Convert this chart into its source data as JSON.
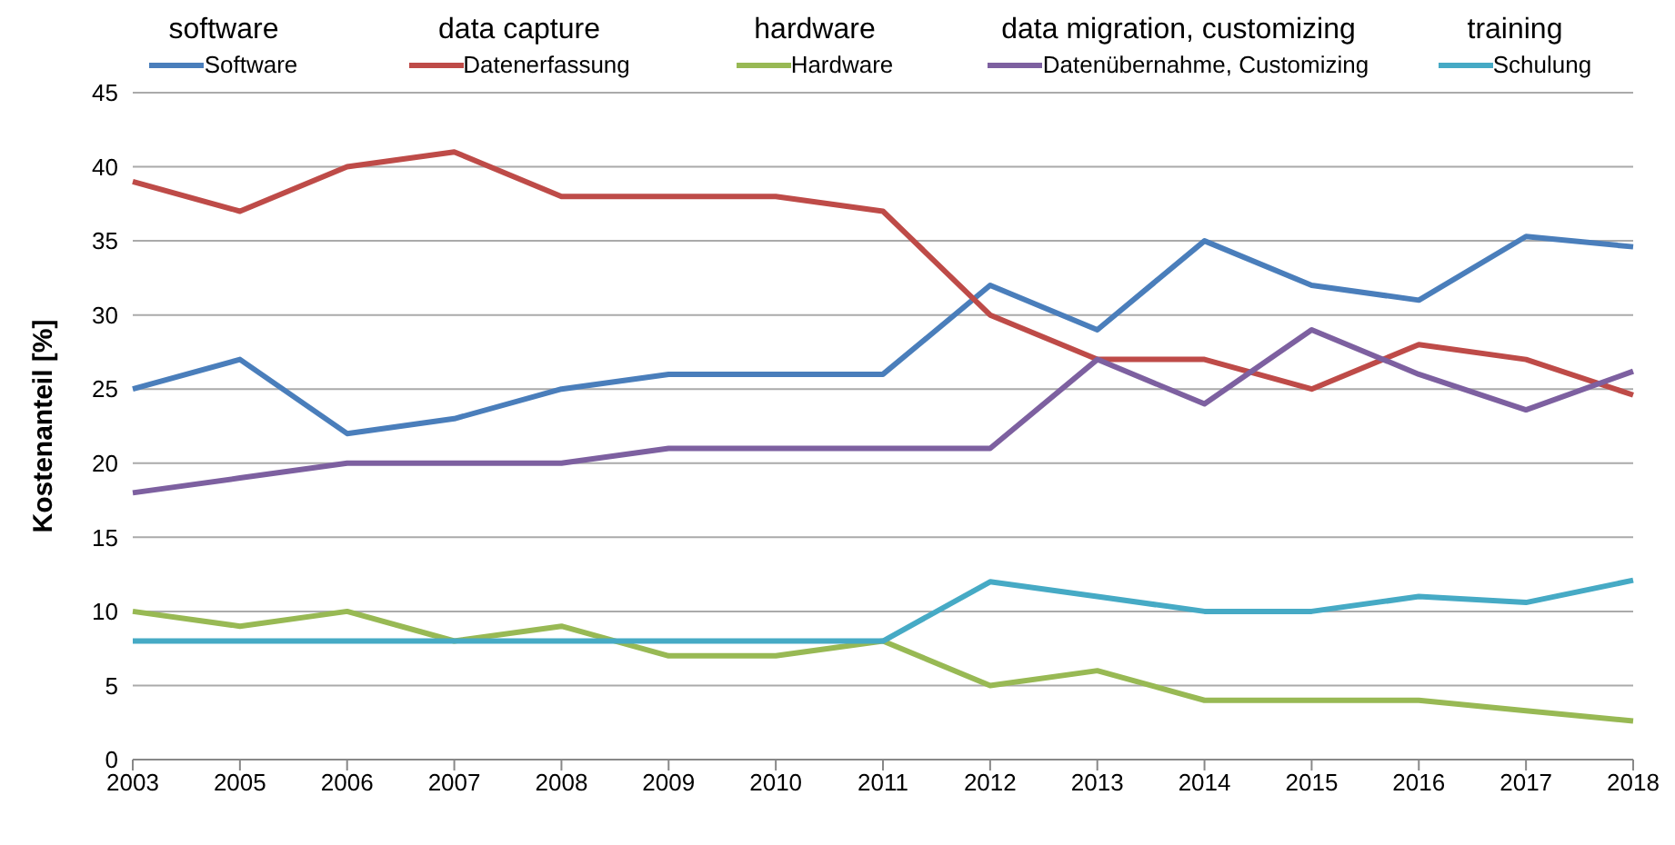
{
  "chart_data": {
    "type": "line",
    "ylabel": "Kostenanteil [%]",
    "annotations": [
      "software",
      "data capture",
      "hardware",
      "data migration, customizing",
      "training"
    ],
    "categories": [
      "2003",
      "2005",
      "2006",
      "2007",
      "2008",
      "2009",
      "2010",
      "2011",
      "2012",
      "2013",
      "2014",
      "2015",
      "2016",
      "2017",
      "2018"
    ],
    "series": [
      {
        "name": "Software",
        "color": "#4a7ebb",
        "values": [
          25,
          27,
          22,
          23,
          25,
          26,
          26,
          26,
          32,
          29,
          35,
          32,
          31,
          35.3,
          34.6
        ]
      },
      {
        "name": "Datenerfassung",
        "color": "#be4b48",
        "values": [
          39,
          37,
          40,
          41,
          38,
          38,
          38,
          37,
          30,
          27,
          27,
          25,
          28,
          27,
          24.6
        ]
      },
      {
        "name": "Hardware",
        "color": "#98b954",
        "values": [
          10,
          9,
          10,
          8,
          9,
          7,
          7,
          8,
          5,
          6,
          4,
          4,
          4,
          3.3,
          2.6
        ]
      },
      {
        "name": "Datenübernahme, Customizing",
        "color": "#7d60a0",
        "values": [
          18,
          19,
          20,
          20,
          20,
          21,
          21,
          21,
          21,
          27,
          24,
          29,
          26,
          23.6,
          26.2
        ]
      },
      {
        "name": "Schulung",
        "color": "#46aac5",
        "values": [
          8,
          8,
          8,
          8,
          8,
          8,
          8,
          8,
          12,
          11,
          10,
          10,
          11,
          10.6,
          12.1
        ]
      }
    ],
    "ylim": [
      0,
      45
    ],
    "yticks": [
      0,
      5,
      10,
      15,
      20,
      25,
      30,
      35,
      40,
      45
    ],
    "grid": "y",
    "legend": "top",
    "marker": "none",
    "line_style": "solid"
  }
}
